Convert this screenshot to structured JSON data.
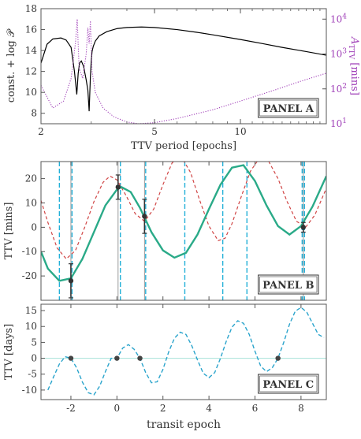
{
  "chart_data": [
    {
      "panel": "A",
      "type": "line",
      "label": "PANEL A",
      "xlabel": "TTV period [epochs]",
      "ylabel_left": "const. + log 𝒫",
      "ylabel_right": "A_TTV [mins]",
      "x_scale": "log",
      "xlim": [
        2,
        20
      ],
      "ylim_left": [
        7,
        18
      ],
      "ylim_right_log10": [
        1,
        4.3
      ],
      "x_ticks": [
        2,
        5,
        10
      ],
      "y_ticks_left": [
        8,
        10,
        12,
        14,
        16,
        18
      ],
      "y_ticks_right_log10": [
        1,
        2,
        3,
        4
      ],
      "series": [
        {
          "axis": "left",
          "color": "#000000",
          "style": "solid",
          "x": [
            2.0,
            2.1,
            2.2,
            2.35,
            2.45,
            2.55,
            2.62,
            2.67,
            2.7,
            2.73,
            2.77,
            2.82,
            2.88,
            2.92,
            2.95,
            2.98,
            3.0,
            3.02,
            3.05,
            3.1,
            3.2,
            3.4,
            3.7,
            4.0,
            4.5,
            5.0,
            6.0,
            7.0,
            8.0,
            10.0,
            12.0,
            14.0,
            17.0,
            20.0
          ],
          "y": [
            12.8,
            14.6,
            15.1,
            15.2,
            15.0,
            14.3,
            12.0,
            9.8,
            11.8,
            12.8,
            13.0,
            12.5,
            11.2,
            10.2,
            8.2,
            11.5,
            13.0,
            13.9,
            14.4,
            14.9,
            15.4,
            15.8,
            16.1,
            16.2,
            16.25,
            16.2,
            16.0,
            15.75,
            15.5,
            15.05,
            14.65,
            14.3,
            13.9,
            13.55
          ]
        },
        {
          "axis": "right",
          "color": "#a040b8",
          "style": "dotted",
          "x": [
            2.0,
            2.2,
            2.4,
            2.55,
            2.64,
            2.68,
            2.72,
            2.8,
            2.88,
            2.92,
            2.95,
            2.98,
            3.02,
            3.1,
            3.3,
            3.6,
            4.0,
            4.4,
            5.0,
            6.0,
            8.0,
            10.0,
            13.0,
            16.0,
            20.0
          ],
          "y_log10": [
            2.1,
            1.45,
            1.65,
            2.3,
            3.3,
            4.0,
            2.6,
            2.3,
            3.0,
            3.75,
            3.3,
            3.95,
            2.5,
            1.9,
            1.45,
            1.2,
            1.05,
            1.0,
            1.03,
            1.15,
            1.4,
            1.65,
            1.95,
            2.2,
            2.45
          ]
        }
      ]
    },
    {
      "panel": "B",
      "type": "line",
      "label": "PANEL B",
      "ylabel": "TTV [mins]",
      "xlim": [
        -3.3,
        9.1
      ],
      "ylim": [
        -30,
        27
      ],
      "y_ticks": [
        -20,
        -10,
        0,
        10,
        20
      ],
      "x_ticks": [
        -2,
        0,
        2,
        4,
        6,
        8
      ],
      "vlines_gray": [
        -2,
        0.05,
        1.2,
        8.1
      ],
      "vlines_cyan": [
        -2.5,
        -1.95,
        0.15,
        1.25,
        2.95,
        4.6,
        5.65,
        8.05,
        8.15
      ],
      "series": [
        {
          "color": "#2aaa88",
          "style": "solid",
          "x": [
            -3.3,
            -3.0,
            -2.5,
            -2.0,
            -1.5,
            -1.0,
            -0.5,
            0.0,
            0.2,
            0.6,
            1.0,
            1.5,
            2.0,
            2.5,
            3.0,
            3.5,
            4.0,
            4.5,
            5.0,
            5.5,
            6.0,
            6.5,
            7.0,
            7.5,
            8.0,
            8.5,
            9.1
          ],
          "y": [
            -10.0,
            -17.0,
            -22.0,
            -21.0,
            -13.0,
            -2.0,
            9.0,
            15.5,
            16.5,
            14.5,
            8.0,
            -2.0,
            -9.5,
            -12.5,
            -10.5,
            -3.0,
            7.5,
            17.5,
            24.5,
            25.5,
            19.0,
            9.0,
            0.5,
            -3.0,
            0.5,
            8.5,
            21.0
          ]
        },
        {
          "color": "#d04444",
          "style": "dashed",
          "x": [
            -3.3,
            -3.0,
            -2.6,
            -2.2,
            -1.8,
            -1.4,
            -1.0,
            -0.6,
            -0.3,
            0.0,
            0.4,
            0.8,
            1.2,
            1.6,
            2.0,
            2.4,
            2.8,
            3.2,
            3.6,
            4.0,
            4.4,
            4.7,
            5.0,
            5.4,
            5.8,
            6.2,
            6.6,
            7.0,
            7.4,
            7.8,
            8.2,
            8.6,
            9.1
          ],
          "y": [
            11.0,
            2.0,
            -8.5,
            -13.0,
            -9.5,
            0.0,
            10.5,
            18.5,
            21.0,
            19.5,
            13.0,
            5.5,
            2.5,
            7.5,
            17.5,
            26.5,
            29.0,
            22.5,
            11.0,
            0.5,
            -5.5,
            -4.5,
            1.5,
            12.5,
            23.0,
            28.5,
            27.0,
            20.0,
            10.5,
            2.5,
            0.0,
            5.0,
            16.0
          ]
        }
      ],
      "points": [
        {
          "x": -2.0,
          "y": -22.0,
          "err": 7.0
        },
        {
          "x": 0.05,
          "y": 16.5,
          "err": 5.0
        },
        {
          "x": 1.2,
          "y": 4.5,
          "err": 7.0
        },
        {
          "x": 8.1,
          "y": 0.0,
          "err": 2.0
        }
      ]
    },
    {
      "panel": "C",
      "type": "line",
      "label": "PANEL C",
      "xlabel": "transit epoch",
      "ylabel": "TTV [days]",
      "xlim": [
        -3.3,
        9.1
      ],
      "ylim": [
        -13,
        17
      ],
      "y_ticks": [
        -10,
        -5,
        0,
        5,
        10,
        15
      ],
      "x_ticks": [
        -2,
        0,
        2,
        4,
        6,
        8
      ],
      "hline": 0,
      "series": [
        {
          "color": "#2aa4cc",
          "style": "dashed",
          "x": [
            -3.0,
            -2.75,
            -2.5,
            -2.25,
            -2.0,
            -1.75,
            -1.5,
            -1.25,
            -1.0,
            -0.75,
            -0.5,
            -0.25,
            0.0,
            0.25,
            0.5,
            0.75,
            1.0,
            1.25,
            1.5,
            1.75,
            2.0,
            2.25,
            2.5,
            2.75,
            3.0,
            3.25,
            3.5,
            3.75,
            4.0,
            4.25,
            4.5,
            4.75,
            5.0,
            5.25,
            5.5,
            5.75,
            6.0,
            6.25,
            6.5,
            6.75,
            7.0,
            7.25,
            7.5,
            7.75,
            8.0,
            8.25,
            8.5,
            8.75,
            9.0
          ],
          "y": [
            -10.0,
            -5.8,
            -1.8,
            0.5,
            0.0,
            -3.0,
            -7.5,
            -10.8,
            -11.5,
            -8.8,
            -4.2,
            0.0,
            0.0,
            3.2,
            4.3,
            2.8,
            0.0,
            -4.5,
            -7.7,
            -7.4,
            -3.5,
            2.0,
            6.3,
            8.2,
            7.5,
            4.0,
            -0.5,
            -4.7,
            -6.1,
            -4.5,
            0.0,
            5.3,
            9.8,
            11.8,
            11.0,
            7.5,
            2.2,
            -2.5,
            -4.2,
            -3.0,
            0.0,
            5.0,
            10.7,
            14.8,
            16.0,
            14.5,
            11.0,
            7.5,
            6.5
          ]
        }
      ],
      "points": [
        {
          "x": -2.0,
          "y": 0.0
        },
        {
          "x": 0.0,
          "y": 0.0
        },
        {
          "x": 1.0,
          "y": 0.0
        },
        {
          "x": 7.0,
          "y": 0.0
        }
      ]
    }
  ]
}
